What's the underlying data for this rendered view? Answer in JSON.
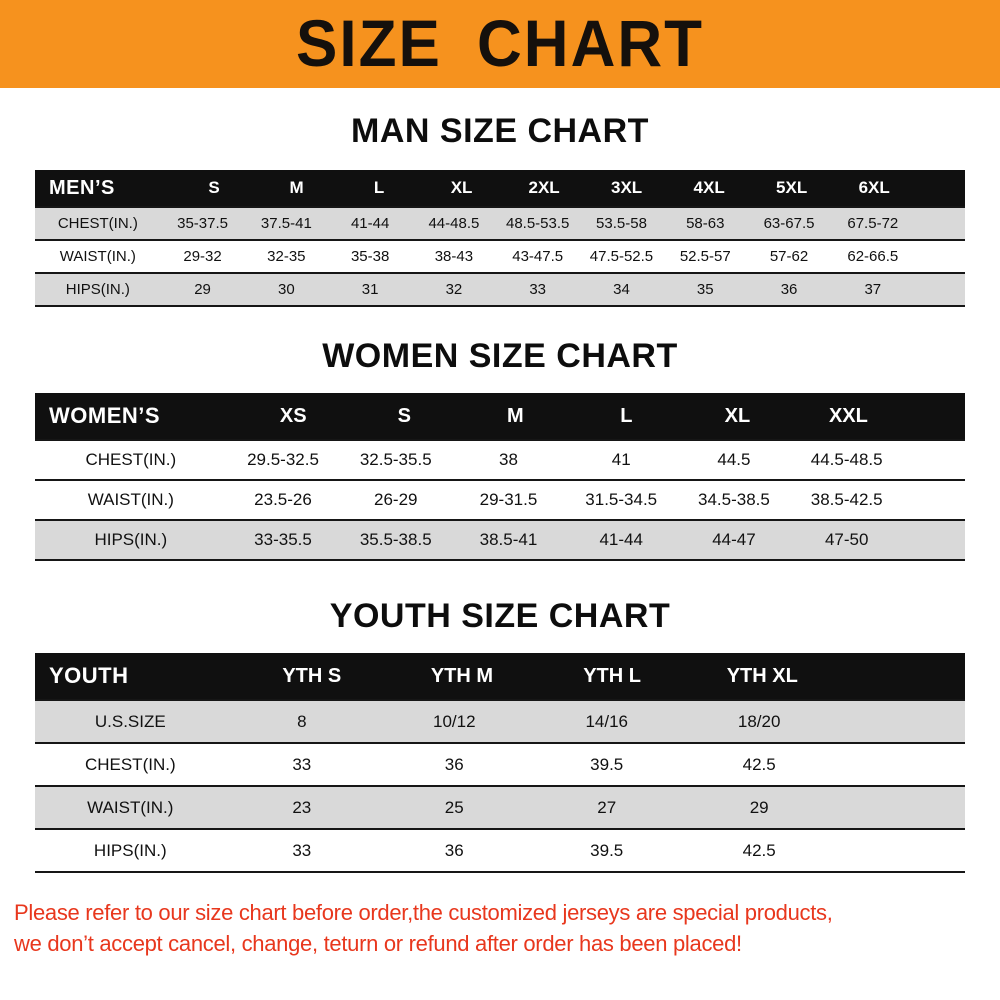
{
  "banner": {
    "title": "SIZE CHART"
  },
  "sections": [
    {
      "heading": "MAN SIZE CHART",
      "table": {
        "header": [
          "MEN’S",
          "S",
          "M",
          "L",
          "XL",
          "2XL",
          "3XL",
          "4XL",
          "5XL",
          "6XL"
        ],
        "rows": [
          {
            "label": "CHEST(IN.)",
            "values": [
              "35-37.5",
              "37.5-41",
              "41-44",
              "44-48.5",
              "48.5-53.5",
              "53.5-58",
              "58-63",
              "63-67.5",
              "67.5-72"
            ]
          },
          {
            "label": "WAIST(IN.)",
            "values": [
              "29-32",
              "32-35",
              "35-38",
              "38-43",
              "43-47.5",
              "47.5-52.5",
              "52.5-57",
              "57-62",
              "62-66.5"
            ]
          },
          {
            "label": "HIPS(IN.)",
            "values": [
              "29",
              "30",
              "31",
              "32",
              "33",
              "34",
              "35",
              "36",
              "37"
            ]
          }
        ]
      }
    },
    {
      "heading": "WOMEN SIZE CHART",
      "table": {
        "header": [
          "WOMEN’S",
          "XS",
          "S",
          "M",
          "L",
          "XL",
          "XXL"
        ],
        "rows": [
          {
            "label": "CHEST(IN.)",
            "values": [
              "29.5-32.5",
              "32.5-35.5",
              "38",
              "41",
              "44.5",
              "44.5-48.5"
            ]
          },
          {
            "label": "WAIST(IN.)",
            "values": [
              "23.5-26",
              "26-29",
              "29-31.5",
              "31.5-34.5",
              "34.5-38.5",
              "38.5-42.5"
            ]
          },
          {
            "label": "HIPS(IN.)",
            "values": [
              "33-35.5",
              "35.5-38.5",
              "38.5-41",
              "41-44",
              "44-47",
              "47-50"
            ]
          }
        ]
      }
    },
    {
      "heading": "YOUTH SIZE CHART",
      "table": {
        "header": [
          "YOUTH",
          "YTH S",
          "YTH M",
          "YTH L",
          "YTH XL"
        ],
        "rows": [
          {
            "label": "U.S.SIZE",
            "values": [
              "8",
              "10/12",
              "14/16",
              "18/20"
            ]
          },
          {
            "label": "CHEST(IN.)",
            "values": [
              "33",
              "36",
              "39.5",
              "42.5"
            ]
          },
          {
            "label": "WAIST(IN.)",
            "values": [
              "23",
              "25",
              "27",
              "29"
            ]
          },
          {
            "label": "HIPS(IN.)",
            "values": [
              "33",
              "36",
              "39.5",
              "42.5"
            ]
          }
        ]
      }
    }
  ],
  "footer": {
    "line1": "Please refer to our size chart before order,the customized jerseys are special products,",
    "line2": "we don’t accept cancel, change, teturn or refund after order has been placed!"
  },
  "theme": {
    "banner_bg": "#f6921e",
    "header_bg": "#101010",
    "row_shade": "#d9d9d9",
    "disclaimer_red": "#e8371d",
    "text": "#111111"
  }
}
